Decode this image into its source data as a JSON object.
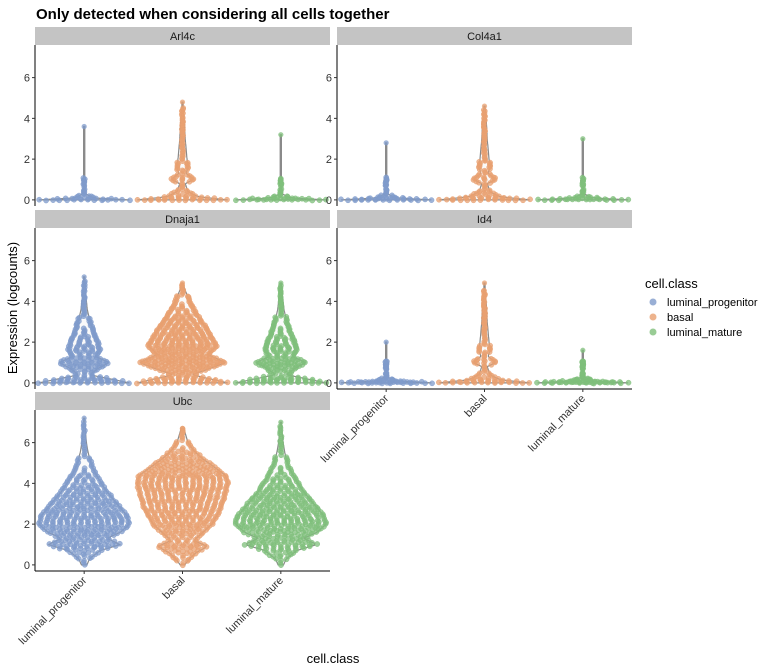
{
  "chart_data": {
    "type": "violin",
    "title": "Only detected when considering all cells together",
    "xlabel": "cell.class",
    "ylabel": "Expression (logcounts)",
    "categories": [
      "luminal_progenitor",
      "basal",
      "luminal_mature"
    ],
    "ylim": [
      -0.3,
      7.6
    ],
    "yticks": [
      0,
      2,
      4,
      6
    ],
    "legend": {
      "title": "cell.class",
      "position": "right",
      "entries": [
        "luminal_progenitor",
        "basal",
        "luminal_mature"
      ]
    },
    "colors": {
      "luminal_progenitor": "#7f9bcb",
      "basal": "#e8a070",
      "luminal_mature": "#7fbf7b",
      "strip": "#c4c4c4",
      "violin_line": "#8a8a8a"
    },
    "panels": [
      {
        "gene": "Arl4c",
        "violins": [
          {
            "category": "luminal_progenitor",
            "max": 3.6,
            "median": 0
          },
          {
            "category": "basal",
            "max": 4.8,
            "median": 0
          },
          {
            "category": "luminal_mature",
            "max": 3.2,
            "median": 0
          }
        ]
      },
      {
        "gene": "Col4a1",
        "violins": [
          {
            "category": "luminal_progenitor",
            "max": 2.8,
            "median": 0
          },
          {
            "category": "basal",
            "max": 4.6,
            "median": 0
          },
          {
            "category": "luminal_mature",
            "max": 3.0,
            "median": 0
          }
        ]
      },
      {
        "gene": "Dnaja1",
        "violins": [
          {
            "category": "luminal_progenitor",
            "max": 5.2,
            "median": 0.3
          },
          {
            "category": "basal",
            "max": 4.9,
            "median": 1.0
          },
          {
            "category": "luminal_mature",
            "max": 4.9,
            "median": 0.3
          }
        ]
      },
      {
        "gene": "Id4",
        "violins": [
          {
            "category": "luminal_progenitor",
            "max": 2.0,
            "median": 0
          },
          {
            "category": "basal",
            "max": 4.9,
            "median": 0
          },
          {
            "category": "luminal_mature",
            "max": 1.6,
            "median": 0
          }
        ]
      },
      {
        "gene": "Ubc",
        "violins": [
          {
            "category": "luminal_progenitor",
            "max": 7.2,
            "median": 2.3
          },
          {
            "category": "basal",
            "max": 6.7,
            "median": 3.8
          },
          {
            "category": "luminal_mature",
            "max": 7.0,
            "median": 2.4
          }
        ]
      }
    ]
  }
}
